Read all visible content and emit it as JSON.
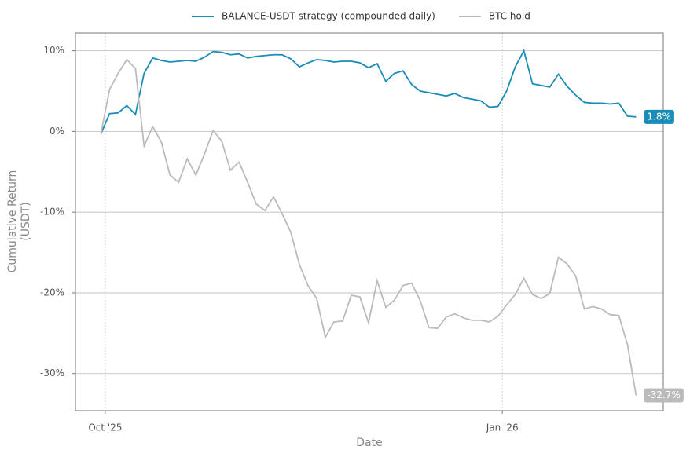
{
  "chart_data": {
    "type": "line",
    "xlabel": "Date",
    "ylabel": [
      "Cumulative Return",
      "(USDT)"
    ],
    "x": [
      -1,
      1,
      3,
      5,
      7,
      9,
      11,
      13,
      15,
      17,
      19,
      21,
      23,
      25,
      27,
      29,
      31,
      33,
      35,
      37,
      39,
      41,
      43,
      45,
      47,
      49,
      51,
      53,
      55,
      57,
      59,
      61,
      63,
      65,
      67,
      69,
      71,
      73,
      75,
      77,
      79,
      81,
      83,
      85,
      87,
      89,
      91,
      93,
      95,
      97,
      99,
      101,
      103,
      105,
      107,
      109,
      111,
      113,
      115,
      117,
      119,
      121,
      123
    ],
    "series": [
      {
        "name": "BALANCE-USDT strategy (compounded daily)",
        "color": "#1a8cb8",
        "values": [
          -0.3,
          2.2,
          2.3,
          3.2,
          2.1,
          7.2,
          9.1,
          8.8,
          8.6,
          8.7,
          8.8,
          8.7,
          9.2,
          9.9,
          9.8,
          9.5,
          9.6,
          9.1,
          9.3,
          9.4,
          9.5,
          9.5,
          9.0,
          8.0,
          8.5,
          8.9,
          8.8,
          8.6,
          8.7,
          8.7,
          8.5,
          7.9,
          8.4,
          6.2,
          7.2,
          7.5,
          5.8,
          5.0,
          4.8,
          4.6,
          4.4,
          4.7,
          4.2,
          4.0,
          3.8,
          3.0,
          3.1,
          5.0,
          8.0,
          10.0,
          5.9,
          5.7,
          5.5,
          7.1,
          5.6,
          4.5,
          3.6,
          3.5,
          3.5,
          3.4,
          3.5,
          1.9,
          1.8
        ]
      },
      {
        "name": "BTC hold",
        "color": "#bbbbbb",
        "values": [
          -0.3,
          5.2,
          7.2,
          8.9,
          7.8,
          -1.8,
          0.6,
          -1.3,
          -5.4,
          -6.3,
          -3.4,
          -5.4,
          -2.8,
          0.1,
          -1.2,
          -4.8,
          -3.8,
          -6.3,
          -9.0,
          -9.8,
          -8.1,
          -10.2,
          -12.5,
          -16.5,
          -19.1,
          -20.7,
          -25.5,
          -23.6,
          -23.5,
          -20.3,
          -20.5,
          -23.7,
          -18.5,
          -21.8,
          -20.9,
          -19.1,
          -18.8,
          -21.0,
          -24.3,
          -24.4,
          -23.0,
          -22.6,
          -23.1,
          -23.4,
          -23.4,
          -23.6,
          -22.9,
          -21.5,
          -20.2,
          -18.2,
          -20.2,
          -20.7,
          -20.1,
          -15.6,
          -16.4,
          -17.9,
          -22.0,
          -21.7,
          -22.0,
          -22.7,
          -22.8,
          -26.4,
          -32.7
        ]
      }
    ],
    "annotations": [
      {
        "value": 1.8,
        "label": "1.8%"
      },
      {
        "value": -32.7,
        "label": "-32.7%"
      }
    ],
    "xlim": [
      -6.9,
      129.3
    ],
    "xticks": [
      {
        "value": 0,
        "label": "Oct '25"
      },
      {
        "value": 92,
        "label": "Jan '26"
      }
    ],
    "ylim": [
      -34.6,
      12.2
    ],
    "yticks": [
      {
        "value": 10,
        "label": "10%"
      },
      {
        "value": 0,
        "label": "0%"
      },
      {
        "value": -10,
        "label": "-10%"
      },
      {
        "value": -20,
        "label": "-20%"
      },
      {
        "value": -30,
        "label": "-30%"
      }
    ],
    "grid": true,
    "legend": "top"
  }
}
